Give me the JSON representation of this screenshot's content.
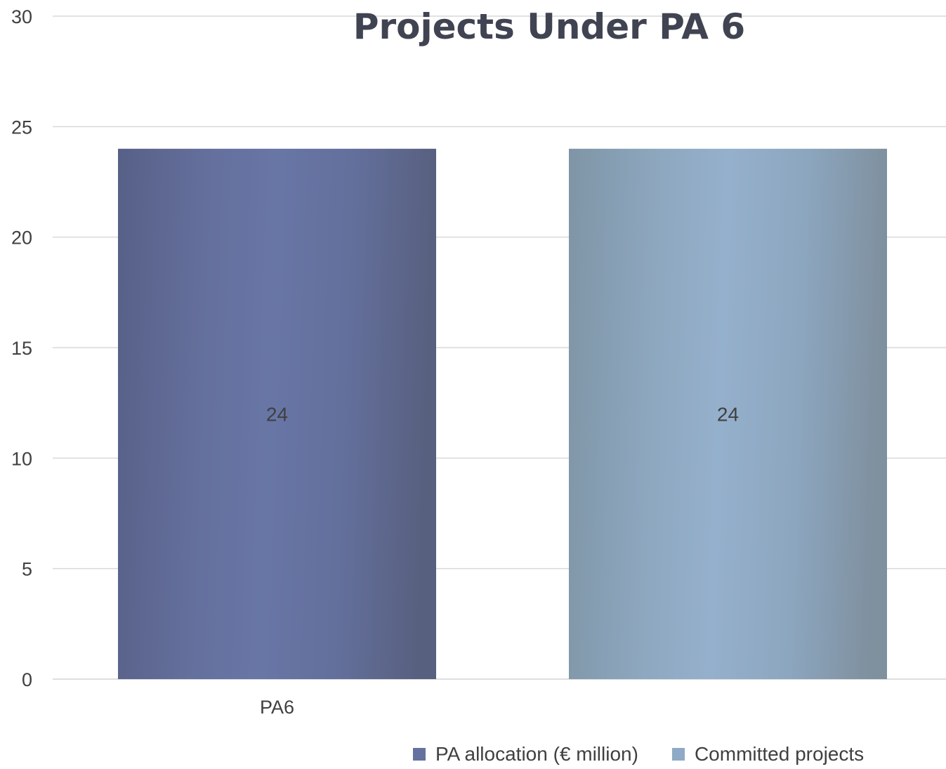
{
  "chart_data": {
    "type": "bar",
    "title": "Projects Under PA 6",
    "categories": [
      "PA6"
    ],
    "series": [
      {
        "name": "PA allocation (€ million)",
        "values": [
          24
        ],
        "color": "#6572a0"
      },
      {
        "name": "Committed projects",
        "values": [
          24
        ],
        "color": "#8eaac6"
      }
    ],
    "ylim": [
      0,
      30
    ],
    "yticks": [
      0,
      5,
      10,
      15,
      20,
      25,
      30
    ],
    "grid": true,
    "legend_position": "bottom-right",
    "data_labels": true
  }
}
